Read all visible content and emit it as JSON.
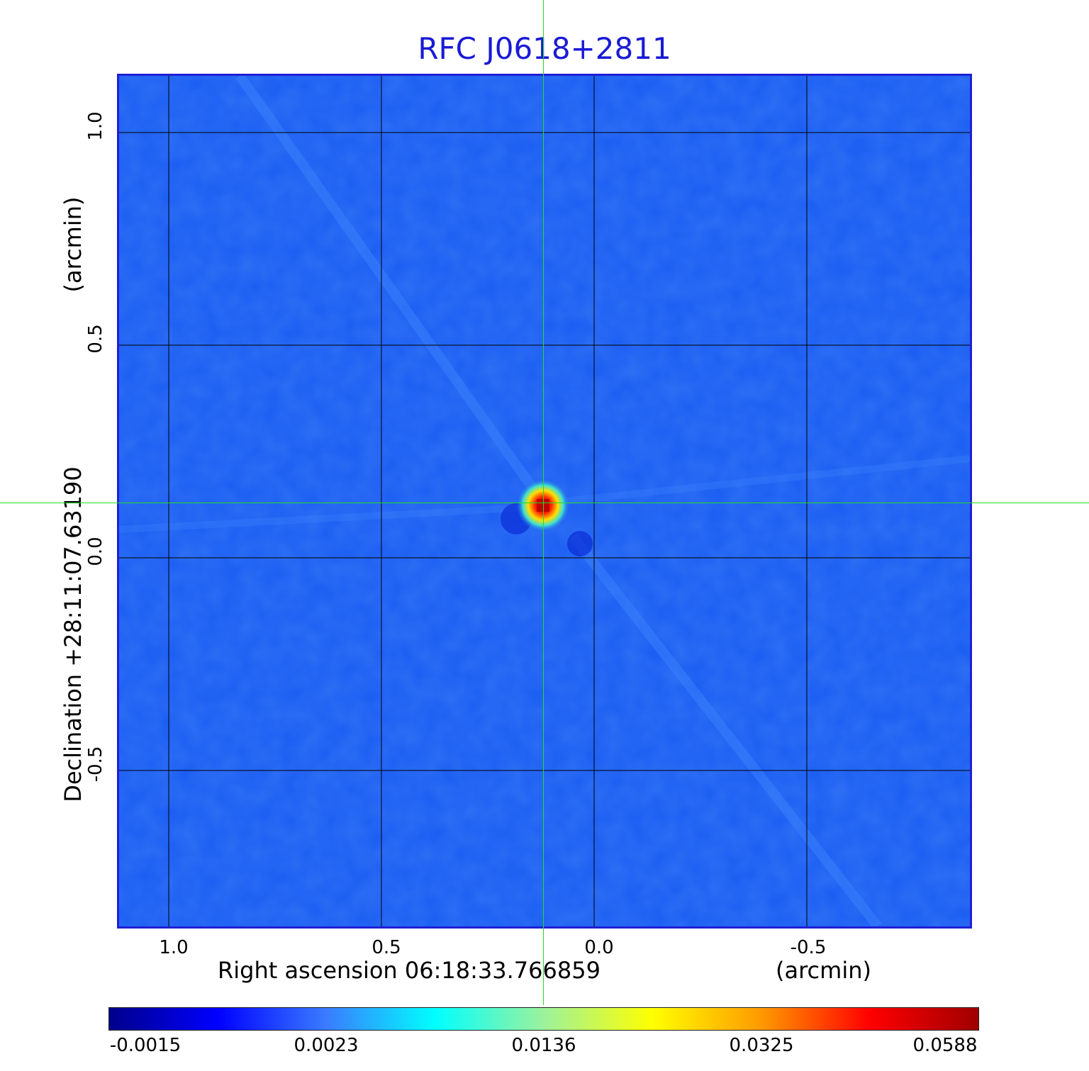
{
  "title": "RFC J0618+2811",
  "x_axis": {
    "label": "Right ascension  06:18:33.766859",
    "unit": "(arcmin)",
    "ticks": [
      "1.0",
      "0.5",
      "0.0",
      "-0.5"
    ]
  },
  "y_axis": {
    "label": "Declination  +28:11:07.63190",
    "unit": "(arcmin)",
    "ticks": [
      "1.0",
      "0.5",
      "0.0",
      "-0.5"
    ]
  },
  "colorbar": {
    "ticks": [
      "-0.0015",
      "0.0023",
      "0.0136",
      "0.0325",
      "0.0588"
    ],
    "colors": [
      "#00008b",
      "#0000ff",
      "#3a7cff",
      "#00ffff",
      "#9cf29c",
      "#ffff00",
      "#ff9a00",
      "#ff0000",
      "#a00000"
    ]
  },
  "colors": {
    "background_map": "#1a5cf2",
    "frame": "#1f1fd6",
    "title": "#1a1ad6",
    "crosshair": "#22dd22",
    "grid": "#000000"
  },
  "image": {
    "colormap": "jet",
    "source_peak_value": 0.0588
  }
}
